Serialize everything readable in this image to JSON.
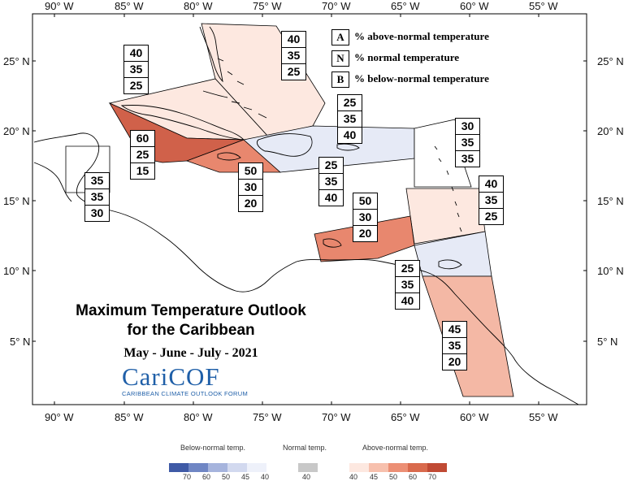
{
  "map": {
    "title_line1": "Maximum Temperature Outlook",
    "title_line2": "for the Caribbean",
    "season": "May - June - July - 2021",
    "logo_text": "CariCOF",
    "logo_subtitle": "CARIBBEAN CLIMATE OUTLOOK FORUM",
    "lon_labels": [
      "90° W",
      "85° W",
      "80° W",
      "75° W",
      "70° W",
      "65° W",
      "60° W",
      "55° W"
    ],
    "lat_labels": [
      "25° N",
      "20° N",
      "15° N",
      "10° N",
      "5° N"
    ],
    "legend": [
      {
        "key": "A",
        "text": "% above-normal temperature"
      },
      {
        "key": "N",
        "text": "% normal temperature"
      },
      {
        "key": "B",
        "text": "% below-normal temperature"
      }
    ],
    "zones": [
      {
        "id": "bahamas-north",
        "above": "40",
        "normal": "35",
        "below": "25",
        "fill": "#fde8e0"
      },
      {
        "id": "cuba-north",
        "above": "40",
        "normal": "35",
        "below": "25",
        "fill": "#fde8e0"
      },
      {
        "id": "cuba-south",
        "above": "60",
        "normal": "25",
        "below": "15",
        "fill": "#d0614a"
      },
      {
        "id": "jamaica",
        "above": "50",
        "normal": "30",
        "below": "20",
        "fill": "#e8876e"
      },
      {
        "id": "hispaniola-north",
        "above": "25",
        "normal": "35",
        "below": "40",
        "fill": "#e6eaf6"
      },
      {
        "id": "hispaniola",
        "above": "25",
        "normal": "35",
        "below": "40",
        "fill": "#e6eaf6"
      },
      {
        "id": "belize",
        "above": "35",
        "normal": "35",
        "below": "30",
        "fill": "#ffffff"
      },
      {
        "id": "northern-leewards",
        "above": "30",
        "normal": "35",
        "below": "35",
        "fill": "#ffffff"
      },
      {
        "id": "windwards",
        "above": "40",
        "normal": "35",
        "below": "25",
        "fill": "#fde8e0"
      },
      {
        "id": "abc-islands",
        "above": "50",
        "normal": "30",
        "below": "20",
        "fill": "#e8876e"
      },
      {
        "id": "trinidad",
        "above": "25",
        "normal": "35",
        "below": "40",
        "fill": "#e6eaf6"
      },
      {
        "id": "guianas",
        "above": "45",
        "normal": "35",
        "below": "20",
        "fill": "#f4b8a5"
      }
    ],
    "colorbar": {
      "below_title": "Below-normal temp.",
      "normal_title": "Normal temp.",
      "above_title": "Above-normal temp.",
      "below_ticks": [
        "70",
        "60",
        "50",
        "45",
        "40"
      ],
      "normal_ticks": [
        "40"
      ],
      "above_ticks": [
        "40",
        "45",
        "50",
        "60",
        "70"
      ],
      "below_colors": [
        "#3f5aa6",
        "#6f86c4",
        "#a6b4dd",
        "#d2d9ef",
        "#eef1fa"
      ],
      "normal_color": "#c8c8c8",
      "above_colors": [
        "#fde8e0",
        "#f7c0ad",
        "#ec8f75",
        "#d96a4d",
        "#c04a34"
      ]
    }
  }
}
